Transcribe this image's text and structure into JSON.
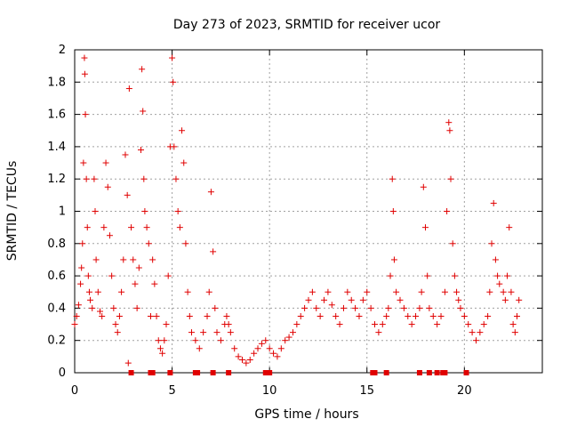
{
  "chart_data": {
    "type": "scatter",
    "title": "Day 273 of 2023, SRMTID for receiver ucor",
    "xlabel": "GPS time / hours",
    "ylabel": "SRMTID / TECUs",
    "xlim": [
      0,
      24
    ],
    "ylim": [
      0,
      2
    ],
    "xticks": [
      0,
      5,
      10,
      15,
      20
    ],
    "xtick_labels": [
      "0",
      "5",
      "10",
      "15",
      "20"
    ],
    "yticks": [
      0,
      0.2,
      0.4,
      0.6,
      0.8,
      1,
      1.2,
      1.4,
      1.6,
      1.8,
      2
    ],
    "ytick_labels": [
      "0",
      "0.2",
      "0.4",
      "0.6",
      "0.8",
      "1",
      "1.2",
      "1.4",
      "1.6",
      "1.8",
      "2"
    ],
    "grid": true,
    "color": "#e00000",
    "marker": "+",
    "series": [
      {
        "name": "SRMTID",
        "points": [
          [
            0.0,
            0.3
          ],
          [
            0.1,
            0.35
          ],
          [
            0.2,
            0.42
          ],
          [
            0.3,
            0.55
          ],
          [
            0.35,
            0.65
          ],
          [
            0.4,
            0.8
          ],
          [
            0.45,
            1.3
          ],
          [
            0.5,
            1.95
          ],
          [
            0.52,
            1.85
          ],
          [
            0.55,
            1.6
          ],
          [
            0.6,
            1.2
          ],
          [
            0.65,
            0.9
          ],
          [
            0.7,
            0.6
          ],
          [
            0.75,
            0.5
          ],
          [
            0.8,
            0.45
          ],
          [
            0.9,
            0.4
          ],
          [
            1.0,
            1.2
          ],
          [
            1.05,
            1.0
          ],
          [
            1.1,
            0.7
          ],
          [
            1.2,
            0.5
          ],
          [
            1.3,
            0.38
          ],
          [
            1.4,
            0.35
          ],
          [
            1.5,
            0.9
          ],
          [
            1.6,
            1.3
          ],
          [
            1.7,
            1.15
          ],
          [
            1.8,
            0.85
          ],
          [
            1.9,
            0.6
          ],
          [
            2.0,
            0.4
          ],
          [
            2.1,
            0.3
          ],
          [
            2.2,
            0.25
          ],
          [
            2.3,
            0.35
          ],
          [
            2.4,
            0.5
          ],
          [
            2.5,
            0.7
          ],
          [
            2.6,
            1.35
          ],
          [
            2.7,
            1.1
          ],
          [
            2.75,
            0.06
          ],
          [
            2.8,
            1.76
          ],
          [
            2.9,
            0.9
          ],
          [
            3.0,
            0.7
          ],
          [
            3.1,
            0.55
          ],
          [
            3.2,
            0.4
          ],
          [
            3.3,
            0.65
          ],
          [
            3.4,
            1.38
          ],
          [
            3.45,
            1.88
          ],
          [
            3.5,
            1.62
          ],
          [
            3.55,
            1.2
          ],
          [
            3.6,
            1.0
          ],
          [
            3.7,
            0.9
          ],
          [
            3.8,
            0.8
          ],
          [
            3.9,
            0.35
          ],
          [
            4.0,
            0.7
          ],
          [
            4.1,
            0.55
          ],
          [
            4.2,
            0.35
          ],
          [
            4.3,
            0.2
          ],
          [
            4.4,
            0.15
          ],
          [
            4.5,
            0.12
          ],
          [
            4.6,
            0.2
          ],
          [
            4.7,
            0.3
          ],
          [
            4.8,
            0.6
          ],
          [
            4.9,
            1.4
          ],
          [
            5.0,
            1.95
          ],
          [
            5.05,
            1.8
          ],
          [
            5.1,
            1.4
          ],
          [
            5.2,
            1.2
          ],
          [
            5.3,
            1.0
          ],
          [
            5.4,
            0.9
          ],
          [
            5.5,
            1.5
          ],
          [
            5.6,
            1.3
          ],
          [
            5.7,
            0.8
          ],
          [
            5.8,
            0.5
          ],
          [
            5.9,
            0.35
          ],
          [
            6.0,
            0.25
          ],
          [
            6.2,
            0.2
          ],
          [
            6.4,
            0.15
          ],
          [
            6.6,
            0.25
          ],
          [
            6.8,
            0.35
          ],
          [
            6.9,
            0.5
          ],
          [
            7.0,
            1.12
          ],
          [
            7.1,
            0.75
          ],
          [
            7.2,
            0.4
          ],
          [
            7.3,
            0.25
          ],
          [
            7.5,
            0.2
          ],
          [
            7.7,
            0.3
          ],
          [
            7.8,
            0.35
          ],
          [
            7.9,
            0.3
          ],
          [
            8.0,
            0.25
          ],
          [
            8.2,
            0.15
          ],
          [
            8.4,
            0.1
          ],
          [
            8.6,
            0.08
          ],
          [
            8.8,
            0.06
          ],
          [
            9.0,
            0.08
          ],
          [
            9.2,
            0.12
          ],
          [
            9.4,
            0.15
          ],
          [
            9.6,
            0.18
          ],
          [
            9.8,
            0.2
          ],
          [
            10.0,
            0.15
          ],
          [
            10.2,
            0.12
          ],
          [
            10.4,
            0.1
          ],
          [
            10.6,
            0.15
          ],
          [
            10.8,
            0.2
          ],
          [
            11.0,
            0.22
          ],
          [
            11.2,
            0.25
          ],
          [
            11.4,
            0.3
          ],
          [
            11.6,
            0.35
          ],
          [
            11.8,
            0.4
          ],
          [
            12.0,
            0.45
          ],
          [
            12.2,
            0.5
          ],
          [
            12.4,
            0.4
          ],
          [
            12.6,
            0.35
          ],
          [
            12.8,
            0.45
          ],
          [
            13.0,
            0.5
          ],
          [
            13.2,
            0.42
          ],
          [
            13.4,
            0.35
          ],
          [
            13.6,
            0.3
          ],
          [
            13.8,
            0.4
          ],
          [
            14.0,
            0.5
          ],
          [
            14.2,
            0.45
          ],
          [
            14.4,
            0.4
          ],
          [
            14.6,
            0.35
          ],
          [
            14.8,
            0.45
          ],
          [
            15.0,
            0.5
          ],
          [
            15.2,
            0.4
          ],
          [
            15.4,
            0.3
          ],
          [
            15.6,
            0.25
          ],
          [
            15.8,
            0.3
          ],
          [
            16.0,
            0.35
          ],
          [
            16.1,
            0.4
          ],
          [
            16.2,
            0.6
          ],
          [
            16.3,
            1.2
          ],
          [
            16.35,
            1.0
          ],
          [
            16.4,
            0.7
          ],
          [
            16.5,
            0.5
          ],
          [
            16.7,
            0.45
          ],
          [
            16.9,
            0.4
          ],
          [
            17.1,
            0.35
          ],
          [
            17.3,
            0.3
          ],
          [
            17.5,
            0.35
          ],
          [
            17.7,
            0.4
          ],
          [
            17.8,
            0.5
          ],
          [
            17.9,
            1.15
          ],
          [
            18.0,
            0.9
          ],
          [
            18.1,
            0.6
          ],
          [
            18.2,
            0.4
          ],
          [
            18.4,
            0.35
          ],
          [
            18.6,
            0.3
          ],
          [
            18.8,
            0.35
          ],
          [
            19.0,
            0.5
          ],
          [
            19.1,
            1.0
          ],
          [
            19.2,
            1.55
          ],
          [
            19.25,
            1.5
          ],
          [
            19.3,
            1.2
          ],
          [
            19.4,
            0.8
          ],
          [
            19.5,
            0.6
          ],
          [
            19.6,
            0.5
          ],
          [
            19.7,
            0.45
          ],
          [
            19.8,
            0.4
          ],
          [
            20.0,
            0.35
          ],
          [
            20.2,
            0.3
          ],
          [
            20.4,
            0.25
          ],
          [
            20.6,
            0.2
          ],
          [
            20.8,
            0.25
          ],
          [
            21.0,
            0.3
          ],
          [
            21.2,
            0.35
          ],
          [
            21.3,
            0.5
          ],
          [
            21.4,
            0.8
          ],
          [
            21.5,
            1.05
          ],
          [
            21.6,
            0.7
          ],
          [
            21.7,
            0.6
          ],
          [
            21.8,
            0.55
          ],
          [
            22.0,
            0.5
          ],
          [
            22.1,
            0.45
          ],
          [
            22.2,
            0.6
          ],
          [
            22.3,
            0.9
          ],
          [
            22.4,
            0.5
          ],
          [
            22.5,
            0.3
          ],
          [
            22.6,
            0.25
          ],
          [
            22.7,
            0.35
          ],
          [
            22.8,
            0.45
          ]
        ]
      }
    ],
    "gaps_at_zero": [
      2.9,
      3.9,
      4.0,
      4.9,
      6.2,
      6.3,
      7.1,
      7.9,
      9.8,
      9.9,
      10.0,
      15.3,
      15.4,
      16.0,
      17.7,
      18.2,
      18.6,
      18.9,
      19.0,
      20.1
    ]
  }
}
